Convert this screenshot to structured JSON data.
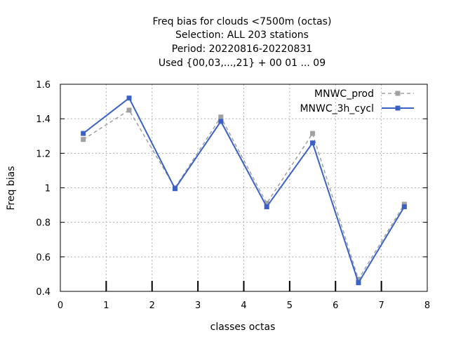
{
  "chart_data": {
    "type": "line",
    "title_lines": [
      "Freq bias  for clouds <7500m (octas)",
      "Selection: ALL    203 stations",
      "Period: 20220816-20220831",
      "Used {00,03,...,21} + 00 01 ... 09"
    ],
    "xlabel": "classes octas",
    "ylabel": "Freq bias",
    "xlim": [
      0,
      8
    ],
    "ylim": [
      0.4,
      1.6
    ],
    "xticks": [
      "0",
      "1",
      "2",
      "3",
      "4",
      "5",
      "6",
      "7",
      "8"
    ],
    "yticks": [
      "0.4",
      "0.6",
      "0.8",
      "1",
      "1.2",
      "1.4",
      "1.6"
    ],
    "grid": true,
    "legend_position": "top-right",
    "x": [
      0.5,
      1.5,
      2.5,
      3.5,
      4.5,
      5.5,
      6.5,
      7.5
    ],
    "series": [
      {
        "name": "MNWC_prod",
        "color": "#a0a0a0",
        "dashed": true,
        "values": [
          1.28,
          1.45,
          1.0,
          1.41,
          0.91,
          1.315,
          0.47,
          0.905
        ]
      },
      {
        "name": "MNWC_3h_cycl",
        "color": "#3a62c6",
        "dashed": false,
        "values": [
          1.315,
          1.52,
          0.995,
          1.385,
          0.89,
          1.26,
          0.45,
          0.89
        ]
      }
    ]
  }
}
